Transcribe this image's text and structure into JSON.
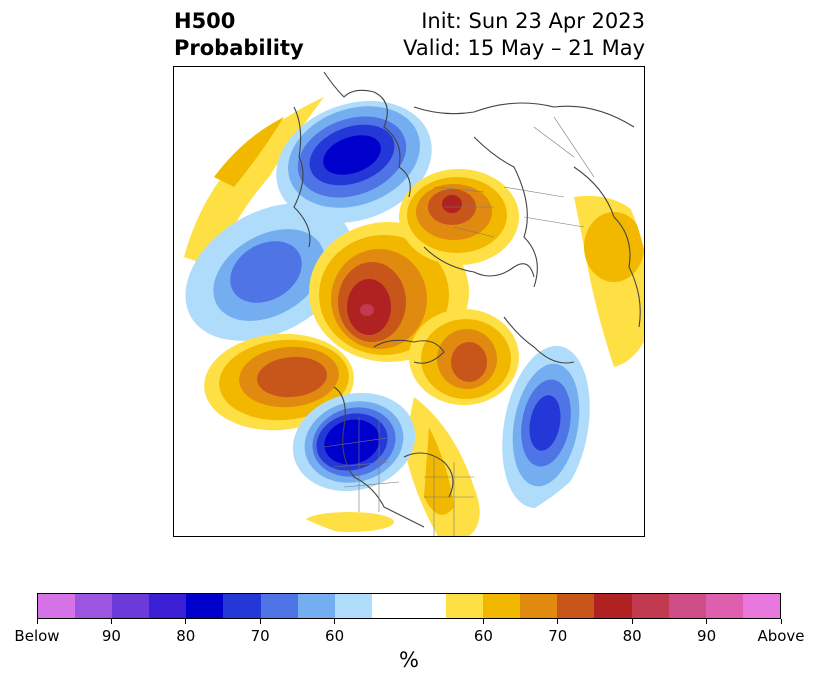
{
  "title": {
    "left_line1": "H500",
    "left_line2": "Probability",
    "right_line1": "Init: Sun 23 Apr 2023",
    "right_line2": "Valid: 15 May – 21 May"
  },
  "colorbar": {
    "label": "%",
    "colors": [
      "#d472e6",
      "#9b55e0",
      "#6b3ad8",
      "#3a1fd4",
      "#0000cc",
      "#2438d8",
      "#4f74e6",
      "#75aef0",
      "#aedcfa",
      "#ffffff",
      "#ffffff",
      "#ffe044",
      "#f2b800",
      "#e08a10",
      "#c8561a",
      "#b02222",
      "#c23a50",
      "#cf4d86",
      "#de5fae",
      "#e877de"
    ],
    "tick_labels": [
      "Below",
      "90",
      "80",
      "70",
      "60",
      "60",
      "70",
      "80",
      "90",
      "Above"
    ]
  }
}
